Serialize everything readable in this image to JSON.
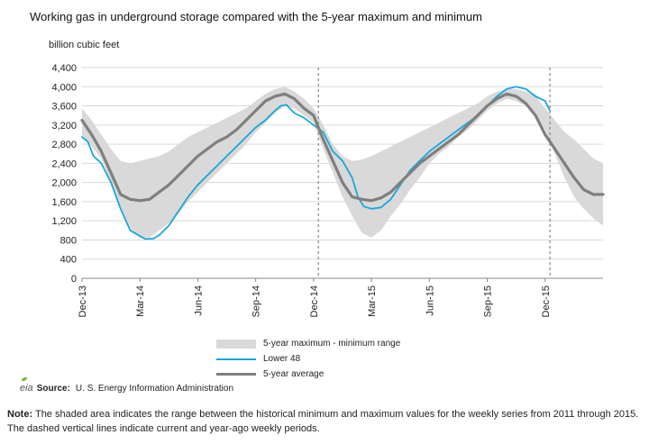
{
  "title": "Working gas in underground storage compared with the 5-year maximum and minimum",
  "unit_label": "billion cubic feet",
  "legend": {
    "range_label": "5-year maximum - minimum range",
    "lower48_label": "Lower 48",
    "avg_label": "5-year average"
  },
  "source": {
    "logo_text": "eia",
    "label": "Source:",
    "text": "U. S. Energy Information Administration"
  },
  "note": {
    "label": "Note:",
    "text": "The shaded area indicates the range between the historical minimum and maximum values for the weekly series from 2011 through 2015. The dashed vertical lines indicate current and year-ago weekly periods."
  },
  "colors": {
    "band": "#d9d9d9",
    "lower48": "#1aa7d8",
    "avg": "#7f7f7f",
    "grid": "#d9d9d9",
    "dashed": "#888888"
  },
  "chart_data": {
    "type": "line",
    "ylim": [
      0,
      4400
    ],
    "yticks": [
      0,
      400,
      800,
      1200,
      1600,
      2000,
      2400,
      2800,
      3200,
      3600,
      4000,
      4400
    ],
    "yticks_labels": [
      "0",
      "400",
      "800",
      "1,200",
      "1,600",
      "2,000",
      "2,400",
      "2,800",
      "3,200",
      "3,600",
      "4,000",
      "4,400"
    ],
    "x_ticks": [
      "Dec-13",
      "Mar-14",
      "Jun-14",
      "Sep-14",
      "Dec-14",
      "Mar-15",
      "Jun-15",
      "Sep-15",
      "Dec-15"
    ],
    "x_months": [
      0,
      3,
      6,
      9,
      12,
      15,
      18,
      21,
      24
    ],
    "x_max_month": 27,
    "dashed_lines_month": [
      12.25,
      24.25
    ],
    "grid": "horizontal",
    "band": {
      "months": [
        0,
        0.5,
        1,
        1.5,
        2,
        2.5,
        3,
        3.5,
        4,
        4.5,
        5,
        5.5,
        6,
        6.5,
        7,
        7.5,
        8,
        8.5,
        9,
        9.5,
        10,
        10.5,
        11,
        11.5,
        12,
        12.5,
        13,
        13.5,
        14,
        14.5,
        15,
        15.5,
        16,
        16.5,
        17,
        17.5,
        18,
        18.5,
        19,
        19.5,
        20,
        20.5,
        21,
        21.5,
        22,
        22.5,
        23,
        23.5,
        24,
        24.5,
        25,
        25.5,
        26,
        26.5,
        27
      ],
      "max": [
        3550,
        3300,
        3000,
        2700,
        2450,
        2400,
        2450,
        2500,
        2550,
        2650,
        2800,
        2950,
        3050,
        3150,
        3250,
        3350,
        3450,
        3550,
        3700,
        3850,
        3950,
        4000,
        3900,
        3750,
        3550,
        3200,
        2800,
        2550,
        2450,
        2480,
        2550,
        2650,
        2750,
        2850,
        2950,
        3050,
        3150,
        3250,
        3350,
        3450,
        3550,
        3650,
        3800,
        3900,
        3950,
        3950,
        3900,
        3800,
        3550,
        3300,
        3050,
        2900,
        2700,
        2500,
        2400
      ],
      "min": [
        3000,
        2750,
        2500,
        2000,
        1500,
        1050,
        850,
        850,
        1000,
        1150,
        1350,
        1600,
        1800,
        2000,
        2200,
        2400,
        2600,
        2800,
        3050,
        3250,
        3450,
        3600,
        3550,
        3400,
        3250,
        2700,
        2200,
        1700,
        1300,
        950,
        850,
        1000,
        1300,
        1550,
        1850,
        2100,
        2400,
        2600,
        2750,
        2950,
        3100,
        3300,
        3500,
        3650,
        3750,
        3700,
        3600,
        3400,
        3100,
        2600,
        2100,
        1700,
        1450,
        1250,
        1100
      ]
    },
    "series": [
      {
        "name": "Lower 48",
        "months": [
          0,
          0.3,
          0.6,
          1,
          1.5,
          2,
          2.5,
          3,
          3.3,
          3.7,
          4,
          4.5,
          5,
          5.5,
          6,
          6.5,
          7,
          7.5,
          8,
          8.5,
          9,
          9.5,
          10,
          10.3,
          10.6,
          11,
          11.5,
          12,
          12.5,
          13,
          13.5,
          14,
          14.3,
          14.6,
          15,
          15.5,
          16,
          16.5,
          17,
          17.5,
          18,
          18.5,
          19,
          19.5,
          20,
          20.5,
          21,
          21.5,
          22,
          22.5,
          23,
          23.5,
          24,
          24.25
        ],
        "values": [
          2950,
          2850,
          2550,
          2400,
          2000,
          1450,
          1000,
          880,
          820,
          830,
          900,
          1100,
          1400,
          1700,
          1950,
          2150,
          2350,
          2550,
          2750,
          2950,
          3150,
          3300,
          3500,
          3600,
          3620,
          3450,
          3350,
          3200,
          3050,
          2650,
          2450,
          2100,
          1700,
          1500,
          1450,
          1480,
          1650,
          1950,
          2250,
          2450,
          2650,
          2800,
          2950,
          3100,
          3250,
          3400,
          3600,
          3800,
          3950,
          4000,
          3950,
          3800,
          3700,
          3500
        ]
      },
      {
        "name": "5-year average",
        "months": [
          0,
          0.5,
          1,
          1.5,
          2,
          2.5,
          3,
          3.5,
          4,
          4.5,
          5,
          5.5,
          6,
          6.5,
          7,
          7.5,
          8,
          8.5,
          9,
          9.5,
          10,
          10.5,
          11,
          11.5,
          12,
          12.5,
          13,
          13.5,
          14,
          14.5,
          15,
          15.5,
          16,
          16.5,
          17,
          17.5,
          18,
          18.5,
          19,
          19.5,
          20,
          20.5,
          21,
          21.5,
          22,
          22.5,
          23,
          23.5,
          24,
          24.5,
          25,
          25.5,
          26,
          26.5,
          27
        ],
        "values": [
          3300,
          3000,
          2650,
          2200,
          1750,
          1650,
          1620,
          1650,
          1800,
          1950,
          2150,
          2350,
          2550,
          2700,
          2850,
          2950,
          3100,
          3300,
          3500,
          3700,
          3800,
          3850,
          3750,
          3550,
          3400,
          2900,
          2450,
          2000,
          1700,
          1650,
          1620,
          1680,
          1800,
          2000,
          2200,
          2400,
          2550,
          2700,
          2850,
          3000,
          3200,
          3400,
          3600,
          3750,
          3850,
          3800,
          3650,
          3400,
          3000,
          2700,
          2400,
          2100,
          1850,
          1750,
          1750
        ]
      }
    ]
  }
}
